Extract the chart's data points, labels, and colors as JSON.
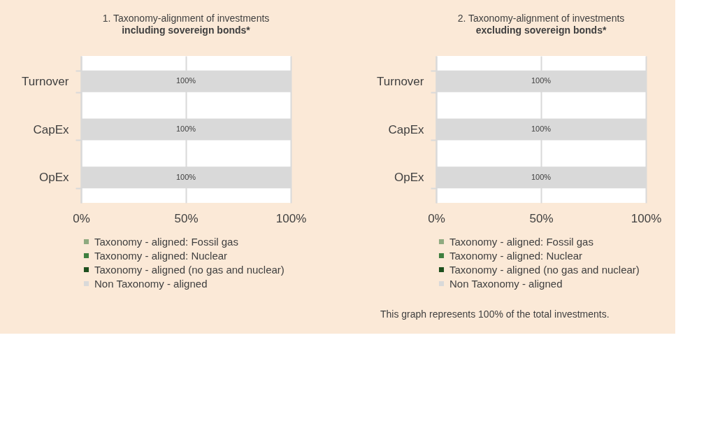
{
  "chart_data": [
    {
      "type": "bar",
      "orientation": "horizontal",
      "stacked": true,
      "title": "1. Taxonomy-alignment of investments",
      "subtitle": "including sovereign bonds*",
      "categories": [
        "Turnover",
        "CapEx",
        "OpEx"
      ],
      "series": [
        {
          "name": "Taxonomy - aligned: Fossil gas",
          "color": "#8faa80",
          "values": [
            0,
            0,
            0
          ]
        },
        {
          "name": "Taxonomy - aligned: Nuclear",
          "color": "#3f7f3f",
          "values": [
            0,
            0,
            0
          ]
        },
        {
          "name": "Taxonomy - aligned (no gas and nuclear)",
          "color": "#1d4f1d",
          "values": [
            0,
            0,
            0
          ]
        },
        {
          "name": "Non Taxonomy - aligned",
          "color": "#d9d9d9",
          "values": [
            100,
            100,
            100
          ],
          "value_labels": [
            "100%",
            "100%",
            "100%"
          ]
        }
      ],
      "xlim": [
        0,
        100
      ],
      "xticks": [
        {
          "value": 0,
          "label": "0%"
        },
        {
          "value": 50,
          "label": "50%"
        },
        {
          "value": 100,
          "label": "100%"
        }
      ],
      "grid": "x",
      "legend": "bottom"
    },
    {
      "type": "bar",
      "orientation": "horizontal",
      "stacked": true,
      "title": "2. Taxonomy-alignment of investments",
      "subtitle": "excluding sovereign bonds*",
      "categories": [
        "Turnover",
        "CapEx",
        "OpEx"
      ],
      "series": [
        {
          "name": "Taxonomy - aligned: Fossil gas",
          "color": "#8faa80",
          "values": [
            0,
            0,
            0
          ]
        },
        {
          "name": "Taxonomy - aligned: Nuclear",
          "color": "#3f7f3f",
          "values": [
            0,
            0,
            0
          ]
        },
        {
          "name": "Taxonomy - aligned (no gas and nuclear)",
          "color": "#1d4f1d",
          "values": [
            0,
            0,
            0
          ]
        },
        {
          "name": "Non Taxonomy - aligned",
          "color": "#d9d9d9",
          "values": [
            100,
            100,
            100
          ],
          "value_labels": [
            "100%",
            "100%",
            "100%"
          ]
        }
      ],
      "xlim": [
        0,
        100
      ],
      "xticks": [
        {
          "value": 0,
          "label": "0%"
        },
        {
          "value": 50,
          "label": "50%"
        },
        {
          "value": 100,
          "label": "100%"
        }
      ],
      "grid": "x",
      "legend": "bottom",
      "annotations": [
        "This graph represents 100% of the total investments."
      ]
    }
  ]
}
